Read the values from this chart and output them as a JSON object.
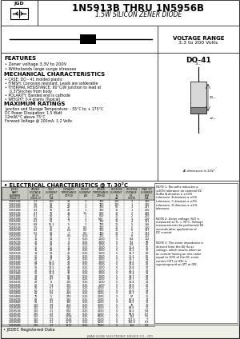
{
  "title_main": "1N5913B THRU 1N5956B",
  "title_sub": "1.5W SILICON ZENER DIODE",
  "voltage_range_line1": "VOLTAGE RANGE",
  "voltage_range_line2": "3.3 to 200 Volts",
  "package": "DO-41",
  "features_title": "FEATURES",
  "features": [
    "• Zener voltage 3.3V to 200V",
    "• Withstands large surge stresses"
  ],
  "mech_title": "MECHANICAL CHARACTERISTICS",
  "mech": [
    "• CASE: DO - 41 molded plastic",
    "• FINISH: Corrosion resistant. Leads are solderable",
    "• THERMAL RESISTANCE: 60°C/W junction to lead at",
    "    0.375inches from body",
    "• POLARITY: Banded end is cathode",
    "• WEIGHT: 0.4 grams (Typical)"
  ],
  "max_title": "MAXIMUM RATINGS",
  "max_ratings": [
    "Junction and Storage Temperature: - 55°C to + 175°C",
    "DC Power Dissipation: 1.5 Watt",
    "12mW/°C above 75°C",
    "Forward Voltage @ 200mA: 1.2 Volts"
  ],
  "elec_title": "• ELECTRICAL CHARCTERISTICS @ Tₗ 30°C",
  "col_headers": [
    "JEDEC\nPART\nNUMBER\n(Note 1)",
    "ZENER\nVOLTAGE\nVZ(V)\n(Note 2)",
    "TEST\nCURRENT\nIZT\nmA",
    "DYNAMIC\nIMPEDANCE\nZZT(Ω)",
    "ZENER\nCURRENT\nIZK\nmA",
    "ZENER\nIMPEDANCE\nZZK(Ω)",
    "REVERSE\nCURRENT\nIR\nuA",
    "REVERSE\nVOLTAGE\nVR\nVOLTS",
    "MAX DC\nCURRENT\nIZM\nmA"
  ],
  "col_subheaders": [
    "VOLTS",
    "VZ(V)",
    "mA",
    "Ω",
    "mA",
    "Ω",
    "uA",
    "VOLTS",
    "mA"
  ],
  "table_data": [
    [
      "1N5913B",
      "3.3",
      "100",
      "28",
      "1",
      "700",
      "100",
      "1",
      "340"
    ],
    [
      "1N5914B",
      "3.6",
      "91",
      "24",
      "1",
      "700",
      "100",
      "1",
      "310"
    ],
    [
      "1N5915B",
      "3.9",
      "84",
      "23",
      "1",
      "700",
      "50",
      "1",
      "287"
    ],
    [
      "1N5916B",
      "4.3",
      "76",
      "22",
      "1",
      "700",
      "10",
      "1",
      "260"
    ],
    [
      "1N5917B",
      "4.7",
      "70",
      "19",
      "1.5",
      "500",
      "10",
      "2",
      "238"
    ],
    [
      "1N5918B",
      "5.1",
      "64",
      "17",
      "1",
      "550",
      "10",
      "2",
      "220"
    ],
    [
      "1N5919B",
      "5.6",
      "58",
      "11",
      "1",
      "600",
      "10",
      "3",
      "200"
    ],
    [
      "1N5920B",
      "6.2",
      "53",
      "7",
      "1",
      "700",
      "10",
      "4",
      "181"
    ],
    [
      "1N5921B",
      "6.8",
      "55.1",
      "5",
      "1",
      "700",
      "10",
      "5",
      "166"
    ],
    [
      "1N5922B",
      "7.5",
      "50",
      "6",
      "0.5",
      "700",
      "10",
      "5",
      "150"
    ],
    [
      "1N5923B",
      "8.2",
      "46",
      "6.5",
      "0.5",
      "700",
      "10",
      "6",
      "137"
    ],
    [
      "1N5924B",
      "9.1",
      "41",
      "7",
      "0.5",
      "700",
      "10",
      "7",
      "123"
    ],
    [
      "1N5925B",
      "10",
      "37",
      "8.5",
      "0.25",
      "700",
      "10",
      "8",
      "112"
    ],
    [
      "1N5926B",
      "11",
      "34",
      "9",
      "0.25",
      "1000",
      "5",
      "8.4",
      "102"
    ],
    [
      "1N5927B",
      "12",
      "31",
      "9",
      "0.25",
      "1000",
      "5",
      "9.1",
      "94"
    ],
    [
      "1N5928B",
      "13",
      "29",
      "10",
      "0.25",
      "1000",
      "5",
      "9.9",
      "86"
    ],
    [
      "1N5929B",
      "15",
      "25",
      "14",
      "0.25",
      "1000",
      "5",
      "11.4",
      "75"
    ],
    [
      "1N5930B",
      "16",
      "23",
      "17",
      "0.25",
      "1000",
      "5",
      "12.2",
      "70"
    ],
    [
      "1N5931B",
      "18",
      "21",
      "21",
      "0.25",
      "1000",
      "5",
      "13.7",
      "63"
    ],
    [
      "1N5932B",
      "20",
      "19",
      "25",
      "0.25",
      "1000",
      "5",
      "15.2",
      "56"
    ],
    [
      "1N5933B",
      "22",
      "17",
      "29",
      "0.25",
      "1000",
      "5",
      "16.7",
      "51"
    ],
    [
      "1N5934B",
      "24",
      "15.5",
      "33",
      "0.25",
      "1000",
      "5",
      "18.2",
      "47"
    ],
    [
      "1N5935B",
      "27",
      "13.8",
      "41",
      "0.25",
      "1000",
      "5",
      "20.6",
      "42"
    ],
    [
      "1N5936B",
      "30",
      "12.5",
      "49",
      "0.25",
      "1000",
      "5",
      "22.8",
      "37"
    ],
    [
      "1N5937B",
      "33",
      "11.4",
      "58",
      "0.25",
      "1000",
      "5",
      "25.1",
      "34"
    ],
    [
      "1N5938B",
      "36",
      "10.4",
      "70",
      "0.25",
      "1000",
      "5",
      "27.4",
      "31"
    ],
    [
      "1N5939B",
      "39",
      "9.6",
      "80",
      "0.25",
      "1000",
      "5",
      "29.7",
      "29"
    ],
    [
      "1N5940B",
      "43",
      "8.7",
      "93",
      "0.25",
      "1500",
      "5",
      "32.7",
      "26"
    ],
    [
      "1N5941B",
      "47",
      "8",
      "105",
      "0.25",
      "1500",
      "5",
      "35.8",
      "24"
    ],
    [
      "1N5942B",
      "51",
      "7.4",
      "125",
      "0.25",
      "1500",
      "5",
      "38.8",
      "22"
    ],
    [
      "1N5943B",
      "56",
      "6.7",
      "150",
      "0.25",
      "2000",
      "5",
      "42.6",
      "20"
    ],
    [
      "1N5944B",
      "60",
      "6.3",
      "171",
      "0.25",
      "2000",
      "5",
      "45.6",
      "19"
    ],
    [
      "1N5945B",
      "68",
      "5.5",
      "219",
      "0.25",
      "2000",
      "5",
      "51.7",
      "16"
    ],
    [
      "1N5946B",
      "75",
      "5",
      "270",
      "0.25",
      "2000",
      "5",
      "57",
      "15"
    ],
    [
      "1N5947B",
      "82",
      "4.6",
      "324",
      "0.25",
      "2000",
      "5",
      "62.4",
      "14"
    ],
    [
      "1N5948B",
      "91",
      "4.1",
      "380",
      "0.25",
      "2500",
      "5",
      "69.2",
      "12"
    ],
    [
      "1N5949B",
      "100",
      "3.8",
      "454",
      "0.25",
      "3000",
      "5",
      "76",
      "11"
    ],
    [
      "1N5950B",
      "110",
      "3.4",
      "550",
      "0.25",
      "3500",
      "5",
      "83.6",
      "10"
    ],
    [
      "1N5951B",
      "120",
      "3.1",
      "674",
      "0.25",
      "4000",
      "5",
      "91.2",
      "9.4"
    ],
    [
      "1N5952B",
      "130",
      "2.9",
      "808",
      "0.25",
      "4500",
      "5",
      "98.8",
      "8.7"
    ],
    [
      "1N5953B",
      "150",
      "2.5",
      "1094",
      "0.25",
      "5000",
      "5",
      "114",
      "7.5"
    ],
    [
      "1N5954B",
      "160",
      "2.3",
      "1244",
      "0.25",
      "5500",
      "5",
      "121.6",
      "7"
    ],
    [
      "1N5955B",
      "180",
      "2.1",
      "1573",
      "0.25",
      "6500",
      "5",
      "136.8",
      "6.3"
    ],
    [
      "1N5956B",
      "200",
      "1.9",
      "1873",
      "0.25",
      "7500",
      "5",
      "152",
      "5.6"
    ]
  ],
  "note1": "NOTE 1: No suffix indicates a ±20% tolerance on nominal VZ. Suffix A denotes a ±10% tolerance. B denotes a ±5% tolerance. C denotes a ±2% tolerance. D denotes a ±1% tolerance.",
  "note2": "NOTE 2: Zener voltage (VZ) is measured at TL = 30°C. Voltage measurements be performed 60 seconds after application of DC current.",
  "note3": "NOTE 3: The zener impedance is derived from the 60 Hz ac voltage, which results when an ac current having an rms value equal to 10% of the DC zener current (IZT or IZK) is superimposed on IZT or IZK.",
  "jedec_note": "• JEDEC Registered Data",
  "company": "JINAN GUDE ELECTRONIC DEVICE CO., LTD",
  "bg_color": "#f0efe8",
  "white": "#ffffff",
  "border_color": "#222222",
  "gray_header": "#c8c8c0"
}
